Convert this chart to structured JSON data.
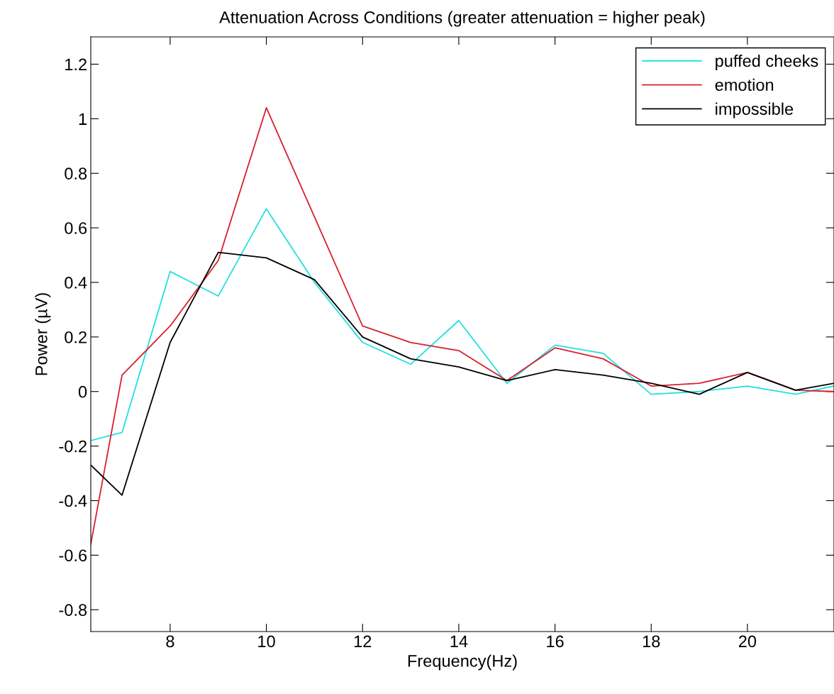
{
  "chart_data": {
    "type": "line",
    "title": "Attenuation Across Conditions (greater attenuation = higher peak)",
    "xlabel": "Frequency(Hz)",
    "ylabel": "Power (µV)",
    "x": [
      6.35,
      7,
      8,
      9,
      10,
      11,
      12,
      13,
      14,
      15,
      16,
      17,
      18,
      19,
      20,
      21,
      21.8
    ],
    "series": [
      {
        "name": "puffed cheeks",
        "color": "#22e0e0",
        "values": [
          -0.18,
          -0.15,
          0.44,
          0.35,
          0.67,
          0.4,
          0.18,
          0.1,
          0.26,
          0.03,
          0.17,
          0.14,
          -0.01,
          0.0,
          0.02,
          -0.01,
          0.02
        ]
      },
      {
        "name": "emotion",
        "color": "#d8202a",
        "values": [
          -0.56,
          0.06,
          0.24,
          0.48,
          1.04,
          0.64,
          0.24,
          0.18,
          0.15,
          0.04,
          0.16,
          0.12,
          0.02,
          0.03,
          0.07,
          0.005,
          0.0
        ]
      },
      {
        "name": "impossible",
        "color": "#000000",
        "values": [
          -0.27,
          -0.38,
          0.18,
          0.51,
          0.49,
          0.41,
          0.2,
          0.12,
          0.09,
          0.04,
          0.08,
          0.06,
          0.03,
          -0.01,
          0.07,
          0.005,
          0.03
        ]
      }
    ],
    "xlim": [
      6.35,
      21.8
    ],
    "ylim": [
      -0.88,
      1.3
    ],
    "xticks": [
      8,
      10,
      12,
      14,
      16,
      18,
      20
    ],
    "yticks": [
      -0.8,
      -0.6,
      -0.4,
      -0.2,
      0,
      0.2,
      0.4,
      0.6,
      0.8,
      1,
      1.2
    ],
    "legend": "top right",
    "grid": false,
    "marker": "none",
    "line_style": "solid"
  }
}
